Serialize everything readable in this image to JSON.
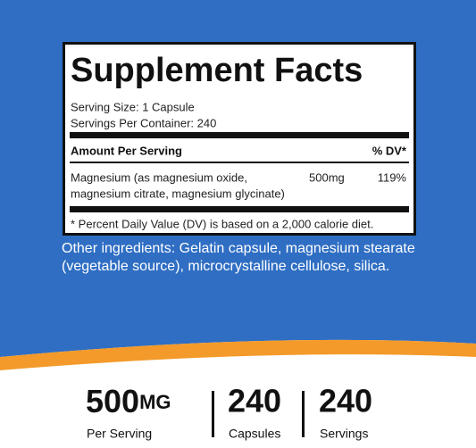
{
  "label": {
    "title": "Supplement Facts",
    "serving_size": "Serving Size: 1 Capsule",
    "servings_per_container": "Servings Per Container: 240",
    "amount_header": "Amount Per Serving",
    "dv_header": "% DV*",
    "nutrient": {
      "name_lines": [
        "Magnesium (as magnesium oxide,",
        "magnesium citrate, magnesium glycinate)"
      ],
      "amount": "500mg",
      "dv": "119%"
    },
    "footnote": "* Percent Daily Value (DV) is based on a 2,000 calorie diet."
  },
  "other_ingredients": [
    "Other ingredients: Gelatin capsule, magnesium stearate",
    "(vegetable source), microcrystalline cellulose, silica."
  ],
  "stats": [
    {
      "value": "500",
      "unit": "MG",
      "label": "Per Serving"
    },
    {
      "value": "240",
      "label": "Capsules"
    },
    {
      "value": "240",
      "label": "Servings"
    }
  ]
}
